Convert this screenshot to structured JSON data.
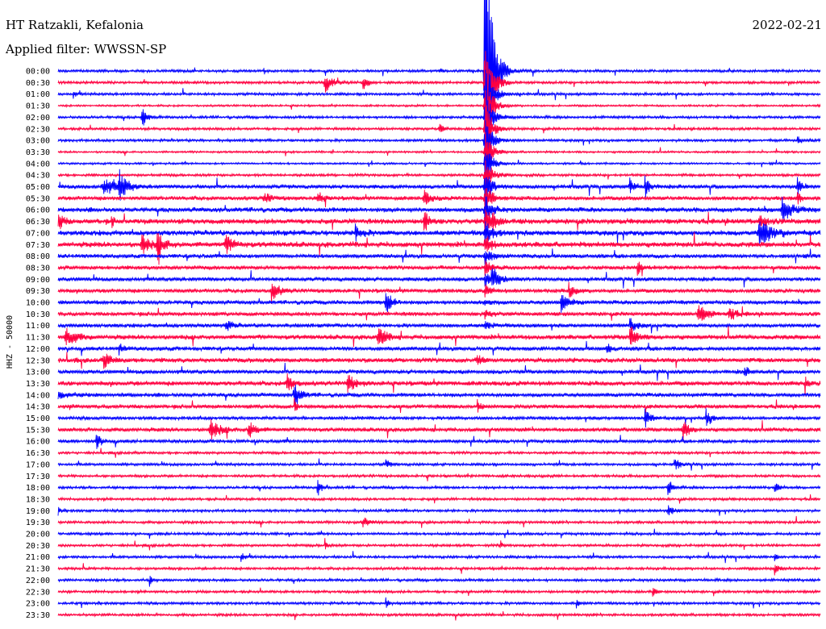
{
  "header": {
    "station": "HT Ratzakli, Kefalonia",
    "filter": "Applied filter: WWSSN-SP",
    "date": "2022-02-21"
  },
  "chart_data": {
    "type": "line",
    "title": "HT Ratzakli, Kefalonia",
    "subtitle": "Applied filter: WWSSN-SP",
    "date": "2022-02-21",
    "ylabel": "HHZ - 50000",
    "row_labels": [
      "00:00",
      "00:30",
      "01:00",
      "01:30",
      "02:00",
      "02:30",
      "03:00",
      "03:30",
      "04:00",
      "04:30",
      "05:00",
      "05:30",
      "06:00",
      "06:30",
      "07:00",
      "07:30",
      "08:00",
      "08:30",
      "09:00",
      "09:30",
      "10:00",
      "10:30",
      "11:00",
      "11:30",
      "12:00",
      "12:30",
      "13:00",
      "13:30",
      "14:00",
      "14:30",
      "15:00",
      "15:30",
      "16:00",
      "16:30",
      "17:00",
      "17:30",
      "18:00",
      "18:30",
      "19:00",
      "19:30",
      "20:00",
      "20:30",
      "21:00",
      "21:30",
      "22:00",
      "22:30",
      "23:00",
      "23:30"
    ],
    "colors": [
      "#0000ff",
      "#ff0040"
    ],
    "noise": [
      2,
      2,
      2,
      1.5,
      2,
      2,
      2,
      1.5,
      1.5,
      2,
      3,
      3,
      3.5,
      4,
      4,
      4,
      3,
      3,
      3,
      3,
      3,
      3,
      3,
      3.5,
      3,
      3.5,
      3,
      3.5,
      3,
      3,
      2.5,
      3,
      2.5,
      2,
      2,
      2,
      2,
      2,
      2,
      2,
      2,
      2,
      2,
      2,
      2,
      2,
      2,
      2
    ],
    "events": [
      [
        0,
        0.27,
        0.2,
        8
      ],
      [
        0,
        0.5,
        0.7,
        3
      ],
      [
        0,
        0.56,
        1.5,
        300
      ],
      [
        1,
        0.35,
        1.5,
        14
      ],
      [
        1,
        0.4,
        1.2,
        9
      ],
      [
        1,
        0.56,
        1.5,
        90
      ],
      [
        2,
        0.02,
        0.4,
        6
      ],
      [
        2,
        0.56,
        1.5,
        60
      ],
      [
        3,
        0.56,
        1.5,
        50
      ],
      [
        4,
        0.11,
        1,
        15
      ],
      [
        4,
        0.56,
        1.5,
        45
      ],
      [
        5,
        0.5,
        0.8,
        7
      ],
      [
        5,
        0.56,
        1.5,
        40
      ],
      [
        6,
        0.56,
        1.5,
        35
      ],
      [
        6,
        0.97,
        0.8,
        7
      ],
      [
        7,
        0.56,
        1.5,
        30
      ],
      [
        8,
        0.56,
        1.5,
        28
      ],
      [
        9,
        0.56,
        1.5,
        26
      ],
      [
        10,
        0.06,
        3,
        10
      ],
      [
        10,
        0.08,
        1.5,
        20
      ],
      [
        10,
        0.75,
        1.2,
        10
      ],
      [
        10,
        0.77,
        1,
        15
      ],
      [
        10,
        0.97,
        0.8,
        12
      ],
      [
        10,
        0.56,
        1.5,
        25
      ],
      [
        11,
        0.27,
        1.5,
        7
      ],
      [
        11,
        0.34,
        1.2,
        9
      ],
      [
        11,
        0.48,
        1.5,
        10
      ],
      [
        11,
        0.56,
        1.5,
        22
      ],
      [
        11,
        0.97,
        0.8,
        10
      ],
      [
        12,
        0.56,
        1.5,
        20
      ],
      [
        12,
        0.95,
        2.5,
        15
      ],
      [
        13,
        0.0,
        1,
        14
      ],
      [
        13,
        0.07,
        0.5,
        8
      ],
      [
        13,
        0.48,
        1,
        16
      ],
      [
        13,
        0.56,
        1.5,
        18
      ],
      [
        13,
        0.57,
        1,
        8
      ],
      [
        13,
        0.92,
        1.5,
        8
      ],
      [
        14,
        0.39,
        1.5,
        10
      ],
      [
        14,
        0.56,
        1.5,
        16
      ],
      [
        14,
        0.92,
        3,
        16
      ],
      [
        15,
        0.11,
        1.5,
        14
      ],
      [
        15,
        0.13,
        1.5,
        18
      ],
      [
        15,
        0.22,
        1.5,
        12
      ],
      [
        15,
        0.56,
        1.5,
        12
      ],
      [
        16,
        0.56,
        1.5,
        10
      ],
      [
        17,
        0.56,
        1.5,
        9
      ],
      [
        17,
        0.76,
        1.2,
        9
      ],
      [
        18,
        0.56,
        1.5,
        8
      ],
      [
        18,
        0.57,
        1.5,
        14
      ],
      [
        19,
        0.28,
        1.5,
        14
      ],
      [
        19,
        0.67,
        1.5,
        9
      ],
      [
        19,
        0.56,
        1.5,
        6
      ],
      [
        20,
        0.43,
        1.5,
        14
      ],
      [
        20,
        0.66,
        1.5,
        14
      ],
      [
        20,
        0.56,
        1.5,
        5
      ],
      [
        21,
        0.84,
        2,
        12
      ],
      [
        21,
        0.88,
        1.5,
        10
      ],
      [
        21,
        0.56,
        1.5,
        5
      ],
      [
        22,
        0.22,
        1.5,
        7
      ],
      [
        22,
        0.75,
        1.5,
        9
      ],
      [
        22,
        0.56,
        1.5,
        5
      ],
      [
        23,
        0.01,
        2,
        14
      ],
      [
        23,
        0.42,
        1.5,
        15
      ],
      [
        23,
        0.75,
        1.5,
        15
      ],
      [
        24,
        0.08,
        1,
        7
      ],
      [
        24,
        0.72,
        1,
        6
      ],
      [
        25,
        0.06,
        1.5,
        12
      ],
      [
        25,
        0.55,
        1,
        9
      ],
      [
        26,
        0.9,
        1,
        7
      ],
      [
        27,
        0.3,
        1.2,
        15
      ],
      [
        27,
        0.38,
        1.5,
        12
      ],
      [
        27,
        0.98,
        0.5,
        14
      ],
      [
        28,
        0.31,
        1.2,
        18
      ],
      [
        28,
        0.0,
        2,
        6
      ],
      [
        29,
        0.31,
        0.5,
        10
      ],
      [
        29,
        0.55,
        0.8,
        8
      ],
      [
        30,
        0.77,
        1.2,
        12
      ],
      [
        30,
        0.85,
        1.2,
        12
      ],
      [
        31,
        0.2,
        2,
        14
      ],
      [
        31,
        0.25,
        1.5,
        12
      ],
      [
        31,
        0.82,
        1.2,
        15
      ],
      [
        32,
        0.05,
        1.2,
        10
      ],
      [
        34,
        0.43,
        0.8,
        8
      ],
      [
        34,
        0.81,
        1,
        8
      ],
      [
        35,
        0.0,
        0,
        0
      ],
      [
        36,
        0.34,
        0.8,
        12
      ],
      [
        36,
        0.8,
        0.8,
        14
      ],
      [
        36,
        0.94,
        0.8,
        9
      ],
      [
        38,
        0.0,
        0.5,
        6
      ],
      [
        38,
        0.8,
        1.2,
        8
      ],
      [
        39,
        0.4,
        1.2,
        7
      ],
      [
        41,
        0.35,
        0.5,
        8
      ],
      [
        41,
        0.58,
        0.5,
        6
      ],
      [
        42,
        0.24,
        0.5,
        9
      ],
      [
        42,
        0.94,
        0.5,
        10
      ],
      [
        43,
        0.94,
        1,
        8
      ],
      [
        44,
        0.12,
        0.5,
        7
      ],
      [
        45,
        0.78,
        0.5,
        10
      ],
      [
        46,
        0.43,
        0.5,
        7
      ],
      [
        46,
        0.68,
        0.5,
        6
      ],
      [
        47,
        0.0,
        0,
        0
      ]
    ]
  }
}
